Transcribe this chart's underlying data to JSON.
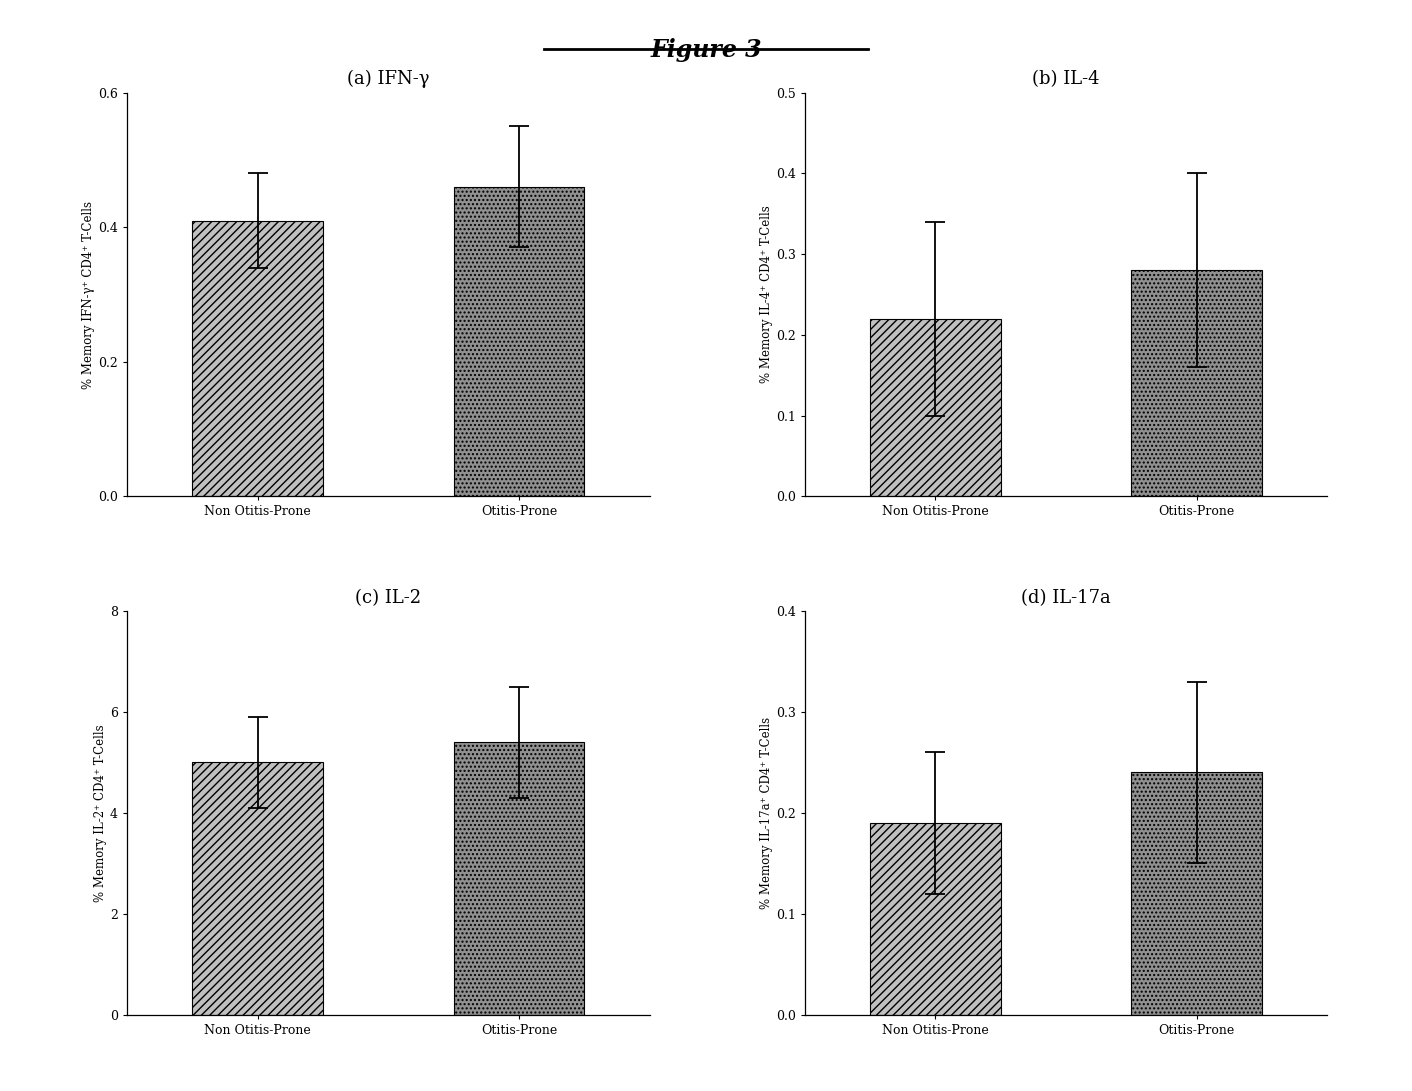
{
  "title": "Figure 3",
  "panels": [
    {
      "label": "(a) IFN-γ",
      "ylabel": "% Memory IFN-γ⁺ CD4⁺ T-Cells",
      "categories": [
        "Non Otitis-Prone",
        "Otitis-Prone"
      ],
      "values": [
        0.41,
        0.46
      ],
      "errors": [
        0.07,
        0.09
      ],
      "ylim": [
        0.0,
        0.6
      ],
      "yticks": [
        0.0,
        0.2,
        0.4,
        0.6
      ],
      "yticklabels": [
        "0.0",
        "0.2",
        "0.4",
        "0.6"
      ]
    },
    {
      "label": "(b) IL-4",
      "ylabel": "% Memory IL-4⁺ CD4⁺ T-Cells",
      "categories": [
        "Non Otitis-Prone",
        "Otitis-Prone"
      ],
      "values": [
        0.22,
        0.28
      ],
      "errors": [
        0.12,
        0.12
      ],
      "ylim": [
        0.0,
        0.5
      ],
      "yticks": [
        0.0,
        0.1,
        0.2,
        0.3,
        0.4,
        0.5
      ],
      "yticklabels": [
        "0.0",
        "0.1",
        "0.2",
        "0.3",
        "0.4",
        "0.5"
      ]
    },
    {
      "label": "(c) IL-2",
      "ylabel": "% Memory IL-2⁺ CD4⁺ T-Cells",
      "categories": [
        "Non Otitis-Prone",
        "Otitis-Prone"
      ],
      "values": [
        5.0,
        5.4
      ],
      "errors": [
        0.9,
        1.1
      ],
      "ylim": [
        0,
        8
      ],
      "yticks": [
        0,
        2,
        4,
        6,
        8
      ],
      "yticklabels": [
        "0",
        "2",
        "4",
        "6",
        "8"
      ]
    },
    {
      "label": "(d) IL-17a",
      "ylabel": "% Memory IL-17a⁺ CD4⁺ T-Cells",
      "categories": [
        "Non Otitis-Prone",
        "Otitis-Prone"
      ],
      "values": [
        0.19,
        0.24
      ],
      "errors": [
        0.07,
        0.09
      ],
      "ylim": [
        0.0,
        0.4
      ],
      "yticks": [
        0.0,
        0.1,
        0.2,
        0.3,
        0.4
      ],
      "yticklabels": [
        "0.0",
        "0.1",
        "0.2",
        "0.3",
        "0.4"
      ]
    }
  ],
  "bar_colors": [
    "#c0c0c0",
    "#909090"
  ],
  "hatch_patterns": [
    "////",
    "...."
  ],
  "background_color": "#ffffff",
  "title_fontsize": 17,
  "subtitle_fontsize": 13,
  "tick_fontsize": 9,
  "ylabel_fontsize": 8.5,
  "xlabel_fontsize": 9,
  "title_underline": [
    0.385,
    0.615,
    0.955
  ]
}
